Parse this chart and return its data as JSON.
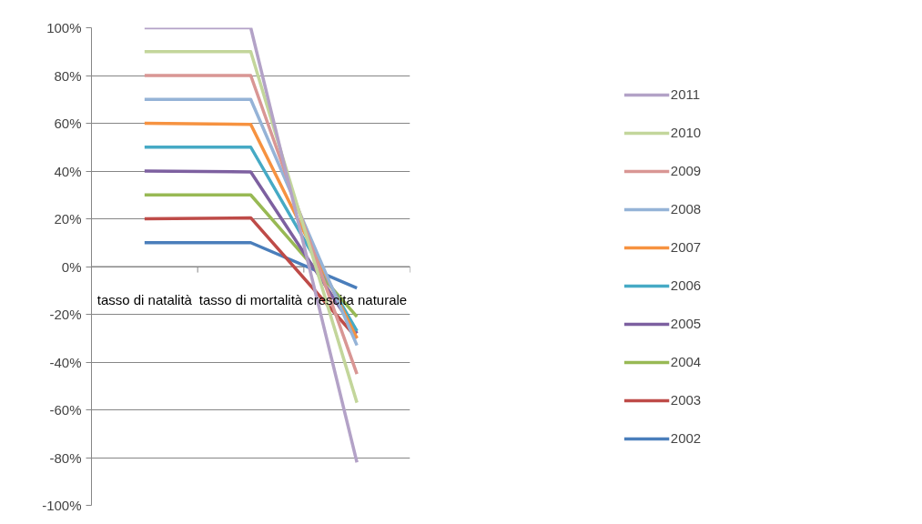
{
  "chart_data": {
    "type": "line",
    "categories": [
      "tasso di natalità",
      "tasso di mortalità",
      "crescita naturale"
    ],
    "ylim": [
      -100,
      100
    ],
    "yticks": [
      {
        "value": -100,
        "label": "-100%"
      },
      {
        "value": -80,
        "label": "-80%"
      },
      {
        "value": -60,
        "label": "-60%"
      },
      {
        "value": -40,
        "label": "-40%"
      },
      {
        "value": -20,
        "label": "-20%"
      },
      {
        "value": 0,
        "label": "0%"
      },
      {
        "value": 20,
        "label": "20%"
      },
      {
        "value": 40,
        "label": "40%"
      },
      {
        "value": 60,
        "label": "60%"
      },
      {
        "value": 80,
        "label": "80%"
      },
      {
        "value": 100,
        "label": "100%"
      }
    ],
    "grid": "y",
    "legend": "right",
    "marker": "none",
    "line_style": "solid",
    "series": [
      {
        "name": "2002",
        "color": "#4a7ebb",
        "values": [
          10,
          10,
          -9
        ]
      },
      {
        "name": "2003",
        "color": "#be4b48",
        "values": [
          20,
          20.4,
          -30
        ]
      },
      {
        "name": "2004",
        "color": "#98b954",
        "values": [
          30,
          30,
          -21
        ]
      },
      {
        "name": "2005",
        "color": "#7d60a0",
        "values": [
          40,
          39.6,
          -28
        ]
      },
      {
        "name": "2006",
        "color": "#46aac5",
        "values": [
          50,
          50,
          -27
        ]
      },
      {
        "name": "2007",
        "color": "#f69240",
        "values": [
          60,
          59.5,
          -30
        ]
      },
      {
        "name": "2008",
        "color": "#95b3d7",
        "values": [
          70,
          70,
          -33
        ]
      },
      {
        "name": "2009",
        "color": "#d99694",
        "values": [
          80,
          80,
          -45
        ]
      },
      {
        "name": "2010",
        "color": "#c3d69b",
        "values": [
          90,
          90,
          -57
        ]
      },
      {
        "name": "2011",
        "color": "#b3a2c7",
        "values": [
          100,
          100,
          -82
        ]
      }
    ]
  }
}
